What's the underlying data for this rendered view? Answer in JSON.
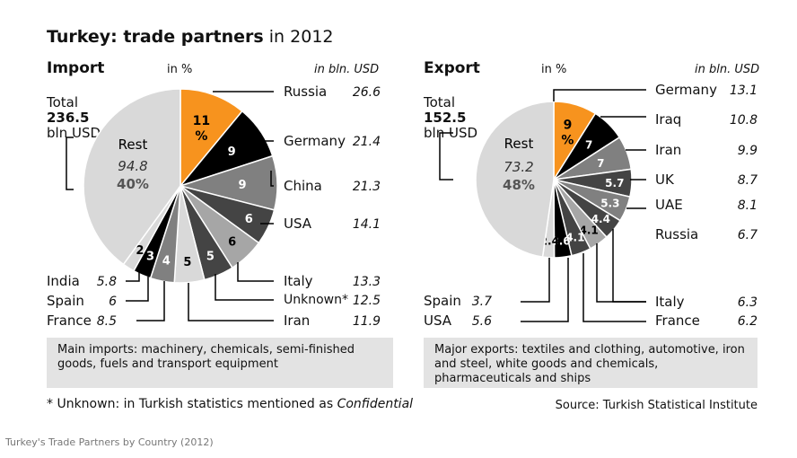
{
  "title": {
    "main": "Turkey: trade partners",
    "sub": "in 2012"
  },
  "caption": "Turkey's Trade Partners by Country (2012)",
  "import_note": "Main imports: machinery, chemicals, semi-finished goods, fuels and transport equipment",
  "export_note": "Major exports: textiles and clothing, automotive, iron and steel, white goods and chemicals, pharmaceuticals and ships",
  "footnote": {
    "text": "* Unknown: in Turkish statistics mentioned as ",
    "italic": "Confidential"
  },
  "source": "Source: Turkish Statistical Institute",
  "colors": {
    "orange": "#f7931e",
    "black": "#000000",
    "dark_gray": "#444444",
    "mid_gray": "#808080",
    "light_gray": "#a6a6a6",
    "rest_gray": "#d9d9d9"
  },
  "chart_data": [
    {
      "type": "pie",
      "title": "Import",
      "unit_pct": "in %",
      "unit_value": "in bln. USD",
      "total_label": "Total",
      "total_value": "236.5",
      "total_unit": "bln USD",
      "rest": {
        "name": "Rest",
        "value": "94.8",
        "pct": "40%"
      },
      "slices": [
        {
          "name": "Russia",
          "pct": 11,
          "pct_label": "11 %",
          "value": "26.6",
          "color": "#f7931e"
        },
        {
          "name": "Germany",
          "pct": 9,
          "pct_label": "9",
          "value": "21.4",
          "color": "#000000"
        },
        {
          "name": "China",
          "pct": 9,
          "pct_label": "9",
          "value": "21.3",
          "color": "#808080"
        },
        {
          "name": "USA",
          "pct": 6,
          "pct_label": "6",
          "value": "14.1",
          "color": "#444444"
        },
        {
          "name": "Italy",
          "pct": 6,
          "pct_label": "6",
          "value": "13.3",
          "color": "#a6a6a6"
        },
        {
          "name": "Unknown*",
          "pct": 5,
          "pct_label": "5",
          "value": "12.5",
          "color": "#444444"
        },
        {
          "name": "Iran",
          "pct": 5,
          "pct_label": "5",
          "value": "11.9",
          "color": "#d9d9d9"
        },
        {
          "name": "France",
          "pct": 4,
          "pct_label": "4",
          "value": "8.5",
          "color": "#808080"
        },
        {
          "name": "Spain",
          "pct": 3,
          "pct_label": "3",
          "value": "6",
          "color": "#000000"
        },
        {
          "name": "India",
          "pct": 2,
          "pct_label": "2",
          "value": "5.8",
          "color": "#d9d9d9"
        },
        {
          "name": "Rest",
          "pct": 40,
          "pct_label": "",
          "value": "94.8",
          "color": "#d9d9d9"
        }
      ]
    },
    {
      "type": "pie",
      "title": "Export",
      "unit_pct": "in %",
      "unit_value": "in bln. USD",
      "total_label": "Total",
      "total_value": "152.5",
      "total_unit": "bln USD",
      "rest": {
        "name": "Rest",
        "value": "73.2",
        "pct": "48%"
      },
      "slices": [
        {
          "name": "Germany",
          "pct": 9,
          "pct_label": "9 %",
          "value": "13.1",
          "color": "#f7931e"
        },
        {
          "name": "Iraq",
          "pct": 7,
          "pct_label": "7",
          "value": "10.8",
          "color": "#000000"
        },
        {
          "name": "Iran",
          "pct": 7,
          "pct_label": "7",
          "value": "9.9",
          "color": "#808080"
        },
        {
          "name": "UK",
          "pct": 5.7,
          "pct_label": "5.7",
          "value": "8.7",
          "color": "#444444"
        },
        {
          "name": "UAE",
          "pct": 5.3,
          "pct_label": "5.3",
          "value": "8.1",
          "color": "#808080"
        },
        {
          "name": "Russia",
          "pct": 4.4,
          "pct_label": "4.4",
          "value": "6.7",
          "color": "#444444"
        },
        {
          "name": "Italy",
          "pct": 4.1,
          "pct_label": "4.1",
          "value": "6.3",
          "color": "#a6a6a6"
        },
        {
          "name": "France",
          "pct": 4.1,
          "pct_label": "4.1",
          "value": "6.2",
          "color": "#444444"
        },
        {
          "name": "USA",
          "pct": 3.6,
          "pct_label": "3.6",
          "value": "5.6",
          "color": "#000000"
        },
        {
          "name": "Spain",
          "pct": 2.4,
          "pct_label": "2.4",
          "value": "3.7",
          "color": "#d9d9d9"
        },
        {
          "name": "Rest",
          "pct": 48,
          "pct_label": "",
          "value": "73.2",
          "color": "#d9d9d9"
        }
      ]
    }
  ]
}
